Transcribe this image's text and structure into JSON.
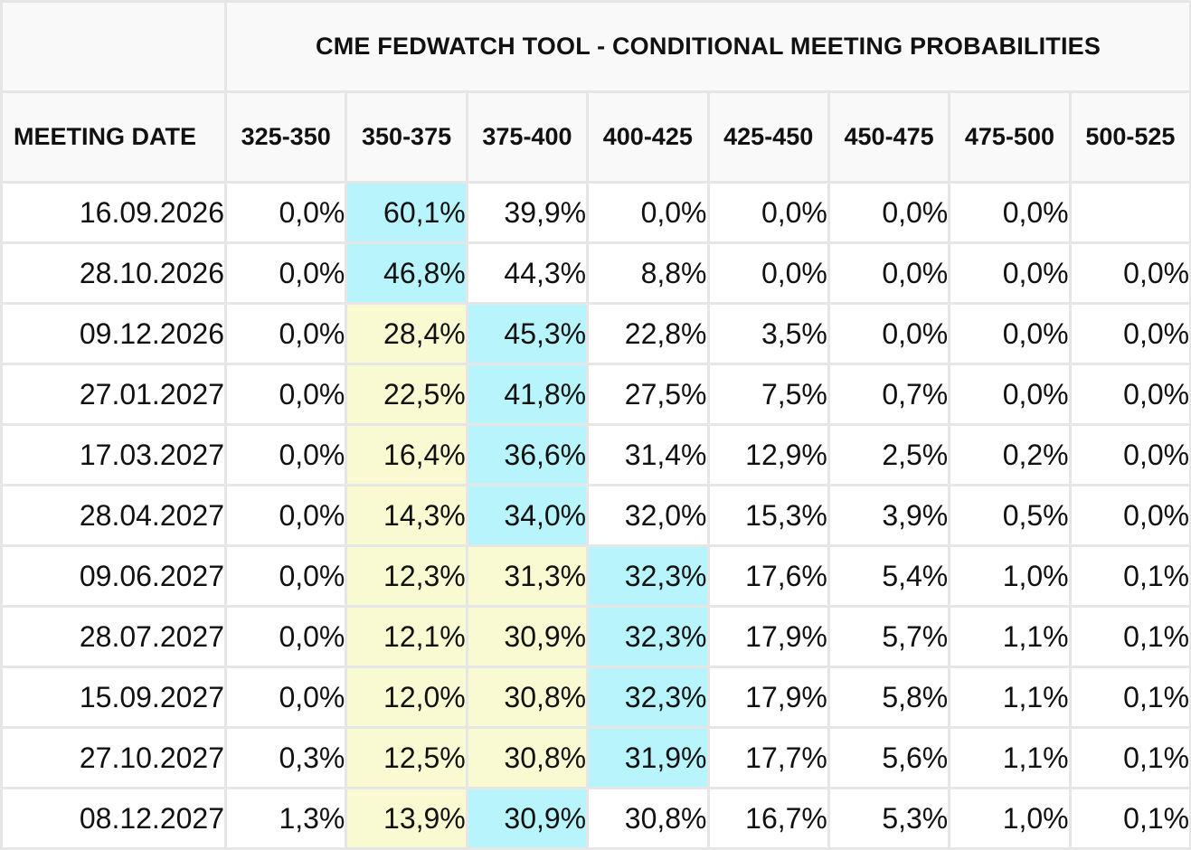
{
  "colors": {
    "highlight_max": "#b8f4fb",
    "highlight_below": "#fafad2",
    "grid": "#e6e6e6",
    "header_bg": "#f9f9f9"
  },
  "table": {
    "title": "CME FEDWATCH TOOL - CONDITIONAL MEETING PROBABILITIES",
    "date_header": "MEETING DATE",
    "rate_headers": [
      "325-350",
      "350-375",
      "375-400",
      "400-425",
      "425-450",
      "450-475",
      "475-500",
      "500-525"
    ],
    "rows": [
      {
        "date": "16.09.2026",
        "cells": [
          {
            "v": "0,0%",
            "hl": ""
          },
          {
            "v": "60,1%",
            "hl": "cyan"
          },
          {
            "v": "39,9%",
            "hl": ""
          },
          {
            "v": "0,0%",
            "hl": ""
          },
          {
            "v": "0,0%",
            "hl": ""
          },
          {
            "v": "0,0%",
            "hl": ""
          },
          {
            "v": "0,0%",
            "hl": ""
          },
          {
            "v": "",
            "hl": ""
          }
        ]
      },
      {
        "date": "28.10.2026",
        "cells": [
          {
            "v": "0,0%",
            "hl": ""
          },
          {
            "v": "46,8%",
            "hl": "cyan"
          },
          {
            "v": "44,3%",
            "hl": ""
          },
          {
            "v": "8,8%",
            "hl": ""
          },
          {
            "v": "0,0%",
            "hl": ""
          },
          {
            "v": "0,0%",
            "hl": ""
          },
          {
            "v": "0,0%",
            "hl": ""
          },
          {
            "v": "0,0%",
            "hl": ""
          }
        ]
      },
      {
        "date": "09.12.2026",
        "cells": [
          {
            "v": "0,0%",
            "hl": ""
          },
          {
            "v": "28,4%",
            "hl": "yellow"
          },
          {
            "v": "45,3%",
            "hl": "cyan"
          },
          {
            "v": "22,8%",
            "hl": ""
          },
          {
            "v": "3,5%",
            "hl": ""
          },
          {
            "v": "0,0%",
            "hl": ""
          },
          {
            "v": "0,0%",
            "hl": ""
          },
          {
            "v": "0,0%",
            "hl": ""
          }
        ]
      },
      {
        "date": "27.01.2027",
        "cells": [
          {
            "v": "0,0%",
            "hl": ""
          },
          {
            "v": "22,5%",
            "hl": "yellow"
          },
          {
            "v": "41,8%",
            "hl": "cyan"
          },
          {
            "v": "27,5%",
            "hl": ""
          },
          {
            "v": "7,5%",
            "hl": ""
          },
          {
            "v": "0,7%",
            "hl": ""
          },
          {
            "v": "0,0%",
            "hl": ""
          },
          {
            "v": "0,0%",
            "hl": ""
          }
        ]
      },
      {
        "date": "17.03.2027",
        "cells": [
          {
            "v": "0,0%",
            "hl": ""
          },
          {
            "v": "16,4%",
            "hl": "yellow"
          },
          {
            "v": "36,6%",
            "hl": "cyan"
          },
          {
            "v": "31,4%",
            "hl": ""
          },
          {
            "v": "12,9%",
            "hl": ""
          },
          {
            "v": "2,5%",
            "hl": ""
          },
          {
            "v": "0,2%",
            "hl": ""
          },
          {
            "v": "0,0%",
            "hl": ""
          }
        ]
      },
      {
        "date": "28.04.2027",
        "cells": [
          {
            "v": "0,0%",
            "hl": ""
          },
          {
            "v": "14,3%",
            "hl": "yellow"
          },
          {
            "v": "34,0%",
            "hl": "cyan"
          },
          {
            "v": "32,0%",
            "hl": ""
          },
          {
            "v": "15,3%",
            "hl": ""
          },
          {
            "v": "3,9%",
            "hl": ""
          },
          {
            "v": "0,5%",
            "hl": ""
          },
          {
            "v": "0,0%",
            "hl": ""
          }
        ]
      },
      {
        "date": "09.06.2027",
        "cells": [
          {
            "v": "0,0%",
            "hl": ""
          },
          {
            "v": "12,3%",
            "hl": "yellow"
          },
          {
            "v": "31,3%",
            "hl": "yellow"
          },
          {
            "v": "32,3%",
            "hl": "cyan"
          },
          {
            "v": "17,6%",
            "hl": ""
          },
          {
            "v": "5,4%",
            "hl": ""
          },
          {
            "v": "1,0%",
            "hl": ""
          },
          {
            "v": "0,1%",
            "hl": ""
          }
        ]
      },
      {
        "date": "28.07.2027",
        "cells": [
          {
            "v": "0,0%",
            "hl": ""
          },
          {
            "v": "12,1%",
            "hl": "yellow"
          },
          {
            "v": "30,9%",
            "hl": "yellow"
          },
          {
            "v": "32,3%",
            "hl": "cyan"
          },
          {
            "v": "17,9%",
            "hl": ""
          },
          {
            "v": "5,7%",
            "hl": ""
          },
          {
            "v": "1,1%",
            "hl": ""
          },
          {
            "v": "0,1%",
            "hl": ""
          }
        ]
      },
      {
        "date": "15.09.2027",
        "cells": [
          {
            "v": "0,0%",
            "hl": ""
          },
          {
            "v": "12,0%",
            "hl": "yellow"
          },
          {
            "v": "30,8%",
            "hl": "yellow"
          },
          {
            "v": "32,3%",
            "hl": "cyan"
          },
          {
            "v": "17,9%",
            "hl": ""
          },
          {
            "v": "5,8%",
            "hl": ""
          },
          {
            "v": "1,1%",
            "hl": ""
          },
          {
            "v": "0,1%",
            "hl": ""
          }
        ]
      },
      {
        "date": "27.10.2027",
        "cells": [
          {
            "v": "0,3%",
            "hl": ""
          },
          {
            "v": "12,5%",
            "hl": "yellow"
          },
          {
            "v": "30,8%",
            "hl": "yellow"
          },
          {
            "v": "31,9%",
            "hl": "cyan"
          },
          {
            "v": "17,7%",
            "hl": ""
          },
          {
            "v": "5,6%",
            "hl": ""
          },
          {
            "v": "1,1%",
            "hl": ""
          },
          {
            "v": "0,1%",
            "hl": ""
          }
        ]
      },
      {
        "date": "08.12.2027",
        "cells": [
          {
            "v": "1,3%",
            "hl": ""
          },
          {
            "v": "13,9%",
            "hl": "yellow"
          },
          {
            "v": "30,9%",
            "hl": "cyan"
          },
          {
            "v": "30,8%",
            "hl": ""
          },
          {
            "v": "16,7%",
            "hl": ""
          },
          {
            "v": "5,3%",
            "hl": ""
          },
          {
            "v": "1,0%",
            "hl": ""
          },
          {
            "v": "0,1%",
            "hl": ""
          }
        ]
      }
    ]
  }
}
